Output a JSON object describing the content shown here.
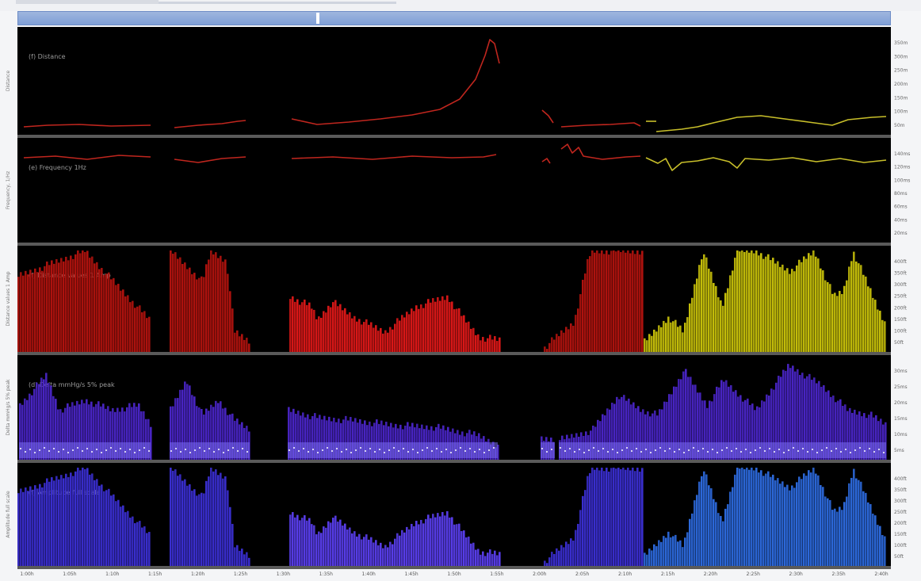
{
  "chart_data": [
    {
      "type": "line",
      "panel_label": "(f) Distance",
      "ylabel": "Distance",
      "tick_labels": [
        "350m",
        "300m",
        "250m",
        "200m",
        "150m",
        "100m",
        "50m"
      ],
      "colors": {
        "early": "#c0261e",
        "late": "#c8bf2a"
      },
      "segments": [
        {
          "color": "early",
          "points": [
            [
              30,
              160
            ],
            [
              60,
              158
            ],
            [
              100,
              157
            ],
            [
              140,
              159
            ],
            [
              190,
              158
            ]
          ]
        },
        {
          "color": "early",
          "points": [
            [
              220,
              161
            ],
            [
              250,
              158
            ],
            [
              280,
              156
            ],
            [
              300,
              153
            ],
            [
              310,
              152
            ]
          ]
        },
        {
          "color": "early",
          "points": [
            [
              368,
              150
            ],
            [
              400,
              157
            ],
            [
              440,
              154
            ],
            [
              480,
              150
            ],
            [
              520,
              145
            ],
            [
              555,
              138
            ],
            [
              580,
              125
            ],
            [
              600,
              100
            ],
            [
              612,
              70
            ],
            [
              618,
              50
            ],
            [
              624,
              55
            ],
            [
              630,
              80
            ]
          ]
        },
        {
          "color": "early",
          "points": [
            [
              684,
              139
            ],
            [
              692,
              146
            ],
            [
              698,
              155
            ]
          ]
        },
        {
          "color": "early",
          "points": [
            [
              708,
              160
            ],
            [
              740,
              158
            ],
            [
              770,
              157
            ],
            [
              800,
              155
            ],
            [
              808,
              159
            ]
          ]
        },
        {
          "color": "late",
          "points": [
            [
              815,
              153
            ],
            [
              828,
              153
            ]
          ]
        },
        {
          "color": "late",
          "points": [
            [
              828,
              166
            ],
            [
              860,
              163
            ],
            [
              880,
              160
            ],
            [
              900,
              155
            ],
            [
              930,
              148
            ],
            [
              960,
              146
            ],
            [
              990,
              150
            ],
            [
              1020,
              154
            ],
            [
              1050,
              158
            ],
            [
              1070,
              151
            ],
            [
              1100,
              148
            ],
            [
              1118,
              147
            ]
          ]
        }
      ]
    },
    {
      "type": "line",
      "panel_label": "(e) Frequency 1Hz",
      "ylabel": "Frequency, 1/Hz",
      "tick_labels": [
        "140ms",
        "120ms",
        "100ms",
        "80ms",
        "60ms",
        "40ms",
        "20ms"
      ],
      "colors": {
        "early": "#c0261e",
        "late": "#c8bf2a"
      },
      "segments": [
        {
          "color": "early",
          "points": [
            [
              30,
              199
            ],
            [
              70,
              197
            ],
            [
              110,
              201
            ],
            [
              150,
              196
            ],
            [
              190,
              198
            ]
          ]
        },
        {
          "color": "early",
          "points": [
            [
              220,
              201
            ],
            [
              250,
              205
            ],
            [
              280,
              200
            ],
            [
              310,
              198
            ]
          ]
        },
        {
          "color": "early",
          "points": [
            [
              368,
              200
            ],
            [
              420,
              198
            ],
            [
              470,
              201
            ],
            [
              520,
              197
            ],
            [
              570,
              199
            ],
            [
              610,
              198
            ],
            [
              626,
              195
            ]
          ]
        },
        {
          "color": "early",
          "points": [
            [
              684,
              204
            ],
            [
              690,
              200
            ],
            [
              694,
              206
            ]
          ]
        },
        {
          "color": "early",
          "points": [
            [
              708,
              188
            ],
            [
              716,
              182
            ],
            [
              722,
              193
            ],
            [
              730,
              186
            ],
            [
              736,
              197
            ],
            [
              760,
              201
            ],
            [
              790,
              198
            ],
            [
              808,
              197
            ]
          ]
        },
        {
          "color": "late",
          "points": [
            [
              815,
              199
            ],
            [
              830,
              206
            ],
            [
              840,
              200
            ],
            [
              848,
              215
            ],
            [
              860,
              205
            ],
            [
              880,
              203
            ],
            [
              900,
              199
            ],
            [
              920,
              204
            ],
            [
              930,
              212
            ],
            [
              940,
              200
            ],
            [
              970,
              202
            ],
            [
              1000,
              199
            ],
            [
              1030,
              204
            ],
            [
              1060,
              200
            ],
            [
              1090,
              205
            ],
            [
              1118,
              202
            ]
          ]
        }
      ]
    },
    {
      "type": "bar",
      "panel_label": "(f) Distance values 1 Amp",
      "ylabel": "Distance values 1 Amp",
      "tick_labels": [
        "400ft",
        "350ft",
        "300ft",
        "250ft",
        "200ft",
        "150ft",
        "100ft",
        "50ft"
      ],
      "colors": {
        "early": "#b3130e",
        "mid": "#e01818",
        "late": "#c9c20a"
      },
      "segments": [
        {
          "color": "early",
          "x": [
            22,
            190
          ],
          "levels": [
            [
              0,
              0.75
            ],
            [
              0.5,
              1
            ],
            [
              1,
              0.3
            ]
          ]
        },
        {
          "color": "early",
          "x": [
            214,
            315
          ],
          "levels": [
            [
              0,
              1
            ],
            [
              0.4,
              0.7
            ],
            [
              0.5,
              1
            ],
            [
              0.7,
              0.9
            ],
            [
              0.8,
              0.2
            ],
            [
              1,
              0.1
            ]
          ]
        },
        {
          "color": "mid",
          "x": [
            365,
            630
          ],
          "levels": [
            [
              0,
              0.55
            ],
            [
              0.1,
              0.45
            ],
            [
              0.13,
              0.32
            ],
            [
              0.2,
              0.5
            ],
            [
              0.3,
              0.35
            ],
            [
              0.45,
              0.2
            ],
            [
              0.6,
              0.45
            ],
            [
              0.75,
              0.55
            ],
            [
              0.82,
              0.35
            ],
            [
              0.9,
              0.15
            ],
            [
              1,
              0.12
            ]
          ]
        },
        {
          "color": "early",
          "x": [
            686,
            810
          ],
          "levels": [
            [
              0,
              0.05
            ],
            [
              0.3,
              0.3
            ],
            [
              0.45,
              0.95
            ],
            [
              0.5,
              1
            ],
            [
              1,
              1
            ]
          ]
        },
        {
          "color": "late",
          "x": [
            812,
            1118
          ],
          "levels": [
            [
              0,
              0.1
            ],
            [
              0.1,
              0.35
            ],
            [
              0.16,
              0.2
            ],
            [
              0.24,
              1
            ],
            [
              0.32,
              0.45
            ],
            [
              0.38,
              1
            ],
            [
              0.46,
              1
            ],
            [
              0.6,
              0.8
            ],
            [
              0.7,
              1
            ],
            [
              0.78,
              0.55
            ],
            [
              0.82,
              0.6
            ],
            [
              0.86,
              1
            ],
            [
              0.96,
              0.45
            ],
            [
              1,
              0.25
            ]
          ]
        }
      ]
    },
    {
      "type": "bar",
      "panel_label": "(d) Delta mmHg/s 5% peak",
      "ylabel": "Delta mmHg/s 5% peak",
      "tick_labels": [
        "30ms",
        "25ms",
        "20ms",
        "15ms",
        "10ms",
        "5ms"
      ],
      "colors": {
        "base": "#4a25c8",
        "band": "#7a6cf2",
        "dots": "#ffffff"
      },
      "segments": [
        {
          "color": "base",
          "x": [
            24,
            190
          ],
          "levels": [
            [
              0,
              0.55
            ],
            [
              0.2,
              0.85
            ],
            [
              0.3,
              0.5
            ],
            [
              0.5,
              0.6
            ],
            [
              0.7,
              0.5
            ],
            [
              0.9,
              0.55
            ],
            [
              1,
              0.35
            ]
          ]
        },
        {
          "color": "base",
          "x": [
            214,
            315
          ],
          "levels": [
            [
              0,
              0.5
            ],
            [
              0.2,
              0.8
            ],
            [
              0.4,
              0.45
            ],
            [
              0.6,
              0.6
            ],
            [
              0.8,
              0.4
            ],
            [
              1,
              0.3
            ]
          ]
        },
        {
          "color": "base",
          "x": [
            363,
            628
          ],
          "levels": [
            [
              0,
              0.5
            ],
            [
              0.15,
              0.42
            ],
            [
              0.3,
              0.4
            ],
            [
              0.5,
              0.35
            ],
            [
              0.7,
              0.33
            ],
            [
              0.9,
              0.25
            ],
            [
              1,
              0.15
            ]
          ]
        },
        {
          "color": "base",
          "x": [
            682,
            700
          ],
          "levels": [
            [
              0,
              0.2
            ],
            [
              1,
              0.2
            ]
          ]
        },
        {
          "color": "base",
          "x": [
            705,
            1118
          ],
          "levels": [
            [
              0,
              0.2
            ],
            [
              0.1,
              0.3
            ],
            [
              0.18,
              0.65
            ],
            [
              0.25,
              0.5
            ],
            [
              0.3,
              0.45
            ],
            [
              0.38,
              0.9
            ],
            [
              0.45,
              0.55
            ],
            [
              0.5,
              0.8
            ],
            [
              0.6,
              0.5
            ],
            [
              0.7,
              0.95
            ],
            [
              0.8,
              0.75
            ],
            [
              0.88,
              0.5
            ],
            [
              0.95,
              0.45
            ],
            [
              1,
              0.35
            ]
          ]
        }
      ]
    },
    {
      "type": "bar",
      "panel_label": "(f) Amplitude full scale",
      "ylabel": "Amplitude full scale",
      "tick_labels": [
        "400ft",
        "350ft",
        "300ft",
        "250ft",
        "200ft",
        "150ft",
        "100ft",
        "50ft"
      ],
      "colors": {
        "early": "#3b2fd4",
        "mid": "#5a3ff0",
        "late": "#2d6be0"
      },
      "segments": [
        {
          "color": "early",
          "x": [
            22,
            190
          ],
          "levels": [
            [
              0,
              0.75
            ],
            [
              0.5,
              1
            ],
            [
              1,
              0.3
            ]
          ]
        },
        {
          "color": "early",
          "x": [
            214,
            315
          ],
          "levels": [
            [
              0,
              1
            ],
            [
              0.4,
              0.7
            ],
            [
              0.5,
              1
            ],
            [
              0.7,
              0.9
            ],
            [
              0.8,
              0.2
            ],
            [
              1,
              0.1
            ]
          ]
        },
        {
          "color": "mid",
          "x": [
            365,
            630
          ],
          "levels": [
            [
              0,
              0.55
            ],
            [
              0.1,
              0.45
            ],
            [
              0.13,
              0.32
            ],
            [
              0.2,
              0.5
            ],
            [
              0.3,
              0.35
            ],
            [
              0.45,
              0.2
            ],
            [
              0.6,
              0.45
            ],
            [
              0.75,
              0.55
            ],
            [
              0.82,
              0.35
            ],
            [
              0.9,
              0.15
            ],
            [
              1,
              0.12
            ]
          ]
        },
        {
          "color": "early",
          "x": [
            686,
            810
          ],
          "levels": [
            [
              0,
              0.05
            ],
            [
              0.3,
              0.3
            ],
            [
              0.45,
              0.95
            ],
            [
              0.5,
              1
            ],
            [
              1,
              1
            ]
          ]
        },
        {
          "color": "late",
          "x": [
            812,
            1118
          ],
          "levels": [
            [
              0,
              0.1
            ],
            [
              0.1,
              0.35
            ],
            [
              0.16,
              0.2
            ],
            [
              0.24,
              1
            ],
            [
              0.32,
              0.45
            ],
            [
              0.38,
              1
            ],
            [
              0.46,
              1
            ],
            [
              0.6,
              0.8
            ],
            [
              0.7,
              1
            ],
            [
              0.78,
              0.55
            ],
            [
              0.82,
              0.6
            ],
            [
              0.86,
              1
            ],
            [
              0.96,
              0.45
            ],
            [
              1,
              0.25
            ]
          ]
        }
      ]
    }
  ],
  "x_axis": {
    "tick_labels": [
      "1:00h",
      "1:05h",
      "1:10h",
      "1:15h",
      "1:20h",
      "1:25h",
      "1:30h",
      "1:35h",
      "1:40h",
      "1:45h",
      "1:50h",
      "1:55h",
      "2:00h",
      "2:05h",
      "2:10h",
      "2:15h",
      "2:20h",
      "2:25h",
      "2:30h",
      "2:35h",
      "2:40h"
    ]
  }
}
